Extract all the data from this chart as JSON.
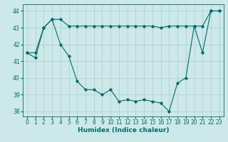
{
  "xlabel": "Humidex (Indice chaleur)",
  "x": [
    0,
    1,
    2,
    3,
    4,
    5,
    6,
    7,
    8,
    9,
    10,
    11,
    12,
    13,
    14,
    15,
    16,
    17,
    18,
    19,
    20,
    21,
    22,
    23
  ],
  "y_main": [
    41.5,
    41.2,
    43.0,
    43.5,
    42.0,
    41.3,
    39.8,
    39.3,
    39.3,
    39.0,
    39.3,
    38.6,
    38.7,
    38.6,
    38.7,
    38.6,
    38.5,
    38.0,
    39.7,
    40.0,
    43.1,
    41.5,
    44.0,
    44.0
  ],
  "y_upper": [
    41.5,
    41.5,
    43.0,
    43.5,
    43.5,
    43.1,
    43.1,
    43.1,
    43.1,
    43.1,
    43.1,
    43.1,
    43.1,
    43.1,
    43.1,
    43.1,
    43.0,
    43.1,
    43.1,
    43.1,
    43.1,
    43.1,
    44.0,
    44.0
  ],
  "ylim": [
    37.7,
    44.4
  ],
  "xlim": [
    -0.5,
    23.5
  ],
  "yticks": [
    38,
    39,
    40,
    41,
    42,
    43,
    44
  ],
  "xticks": [
    0,
    1,
    2,
    3,
    4,
    5,
    6,
    7,
    8,
    9,
    10,
    11,
    12,
    13,
    14,
    15,
    16,
    17,
    18,
    19,
    20,
    21,
    22,
    23
  ],
  "line_color": "#006b6b",
  "marker": "D",
  "marker_size": 1.8,
  "bg_color": "#cce8e8",
  "grid_color": "#aacfcf",
  "line_width": 0.8,
  "tick_fontsize": 5.5,
  "label_fontsize": 6.5
}
